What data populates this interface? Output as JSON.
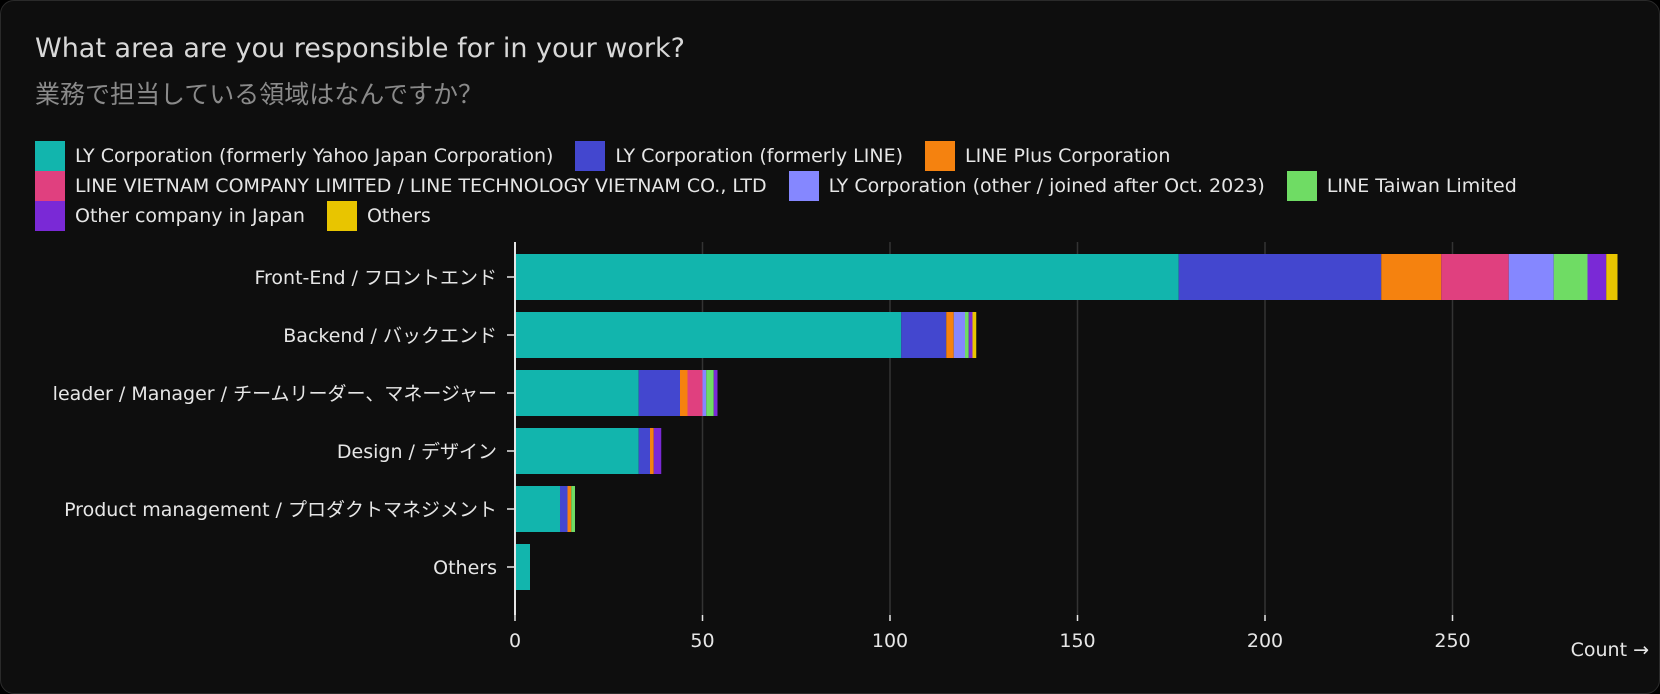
{
  "header": {
    "title": "What area are you responsible for in your work?",
    "subtitle": "業務で担当している領域はなんですか？"
  },
  "chart_data": {
    "type": "bar",
    "orientation": "horizontal",
    "stacked": true,
    "title": "What area are you responsible for in your work?",
    "subtitle": "業務で担当している領域はなんですか？",
    "xlabel": "Count →",
    "ylabel": "",
    "xlim": [
      0,
      294
    ],
    "xticks": [
      0,
      50,
      100,
      150,
      200,
      250
    ],
    "grid": "vertical",
    "legend_position": "top",
    "categories": [
      "Front-End / フロントエンド",
      "Backend / バックエンド",
      "leader / Manager / チームリーダー、マネージャー",
      "Design / デザイン",
      "Product management / プロダクトマネジメント",
      "Others"
    ],
    "series": [
      {
        "name": "LY Corporation (formerly Yahoo Japan Corporation)",
        "color": "#12b5ad",
        "values": [
          177,
          103,
          33,
          33,
          12,
          4
        ]
      },
      {
        "name": "LY Corporation (formerly LINE)",
        "color": "#4347cf",
        "values": [
          54,
          12,
          11,
          3,
          2,
          0
        ]
      },
      {
        "name": "LINE Plus Corporation",
        "color": "#f5820f",
        "values": [
          16,
          2,
          2,
          1,
          1,
          0
        ]
      },
      {
        "name": "LINE VIETNAM COMPANY LIMITED / LINE TECHNOLOGY VIETNAM CO., LTD",
        "color": "#e0407f",
        "values": [
          18,
          0,
          4,
          0,
          0,
          0
        ]
      },
      {
        "name": "LY Corporation (other / joined after Oct. 2023)",
        "color": "#8587ff",
        "values": [
          12,
          3,
          1,
          0,
          0,
          0
        ]
      },
      {
        "name": "LINE Taiwan Limited",
        "color": "#6fdc64",
        "values": [
          9,
          1,
          2,
          0,
          1,
          0
        ]
      },
      {
        "name": "Other company in Japan",
        "color": "#7a29d6",
        "values": [
          5,
          1,
          1,
          2,
          0,
          0
        ]
      },
      {
        "name": "Others",
        "color": "#e8c500",
        "values": [
          3,
          1,
          0,
          0,
          0,
          0
        ]
      }
    ]
  }
}
